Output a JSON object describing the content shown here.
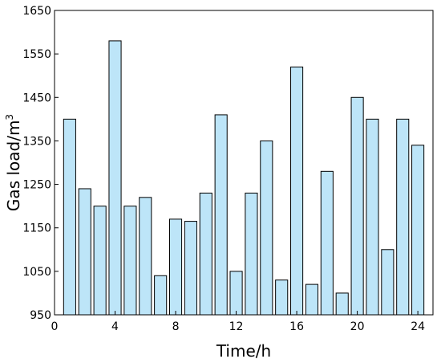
{
  "chart_data": {
    "type": "bar",
    "xlabel": "Time/h",
    "ylabel_main": "Gas load/m",
    "ylabel_sup": "3",
    "bar_color": "#bde5f8",
    "bar_edge": "#000000",
    "xlim": [
      0,
      25
    ],
    "ylim": [
      950,
      1650
    ],
    "xticks": [
      0,
      4,
      8,
      12,
      16,
      20,
      24
    ],
    "yticks": [
      950,
      1050,
      1150,
      1250,
      1350,
      1450,
      1550,
      1650
    ],
    "x": [
      1,
      2,
      3,
      4,
      5,
      6,
      7,
      8,
      9,
      10,
      11,
      12,
      13,
      14,
      15,
      16,
      17,
      18,
      19,
      20,
      21,
      22,
      23,
      24
    ],
    "values": [
      1400,
      1240,
      1200,
      1580,
      1200,
      1220,
      1040,
      1170,
      1165,
      1230,
      1410,
      1050,
      1230,
      1350,
      1030,
      1520,
      1020,
      1280,
      1000,
      1450,
      1400,
      1100,
      1400,
      1340
    ]
  }
}
